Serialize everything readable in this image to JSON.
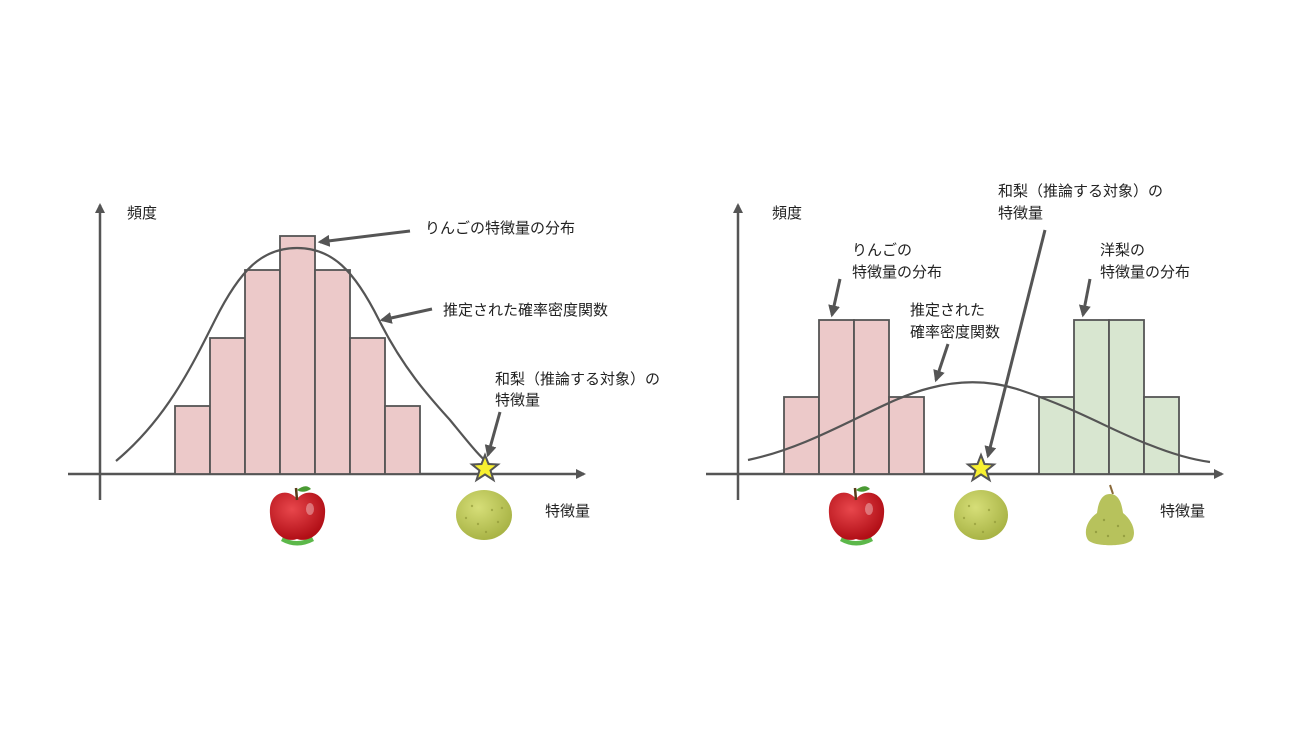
{
  "colors": {
    "axis": "#555555",
    "apple_bar": "#ecc9c9",
    "pear_bar": "#d8e6d0",
    "star": "#f8f030",
    "apple": "#c8141c",
    "nashi": "#c2cc5a",
    "western_pear": "#b7c25c"
  },
  "left": {
    "ylabel": "頻度",
    "xlabel": "特徴量",
    "hist_label": "りんごの特徴量の分布",
    "pdf_label": "推定された確率密度関数",
    "target_label_line1": "和梨（推論する対象）の",
    "target_label_line2": "特徴量",
    "bar_heights": [
      2,
      4,
      6,
      7,
      6,
      4,
      2
    ],
    "icons": [
      "apple-icon",
      "nashi-pear-icon",
      "star-icon"
    ]
  },
  "right": {
    "ylabel": "頻度",
    "xlabel": "特徴量",
    "apple_label_line1": "りんごの",
    "apple_label_line2": "特徴量の分布",
    "pdf_label_line1": "推定された",
    "pdf_label_line2": "確率密度関数",
    "target_label_line1": "和梨（推論する対象）の",
    "target_label_line2": "特徴量",
    "pear_label_line1": "洋梨の",
    "pear_label_line2": "特徴量の分布",
    "apple_bar_heights": [
      1,
      2,
      2,
      1
    ],
    "pear_bar_heights": [
      1,
      2,
      2,
      1
    ],
    "icons": [
      "apple-icon",
      "nashi-pear-icon",
      "western-pear-icon",
      "star-icon"
    ]
  }
}
